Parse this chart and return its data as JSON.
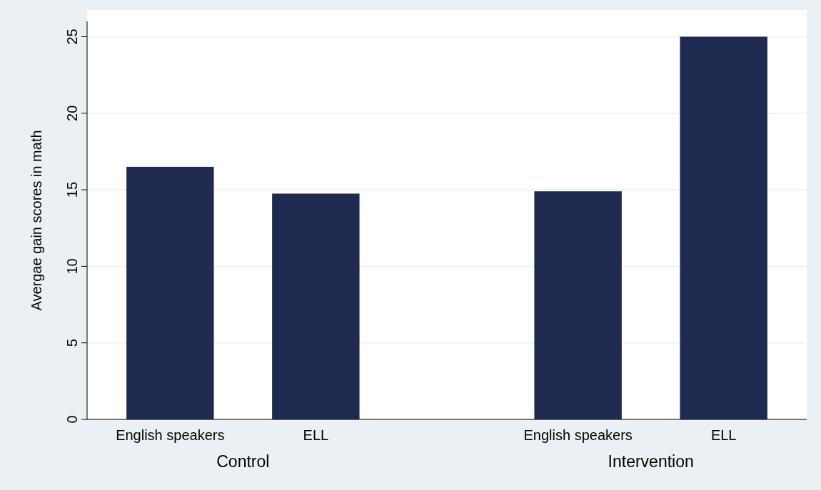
{
  "chart_data": {
    "type": "bar",
    "ylabel": "Avergae gain scores in math",
    "categories": [
      "English speakers",
      "ELL",
      "English speakers",
      "ELL"
    ],
    "values": [
      16.5,
      14.75,
      14.9,
      25
    ],
    "color": "#1f2a50",
    "ylim": [
      0,
      26
    ],
    "yticks": [
      0,
      5,
      10,
      15,
      20,
      25
    ],
    "grid": "y",
    "annotations": [
      "Control",
      "Intervention"
    ]
  }
}
